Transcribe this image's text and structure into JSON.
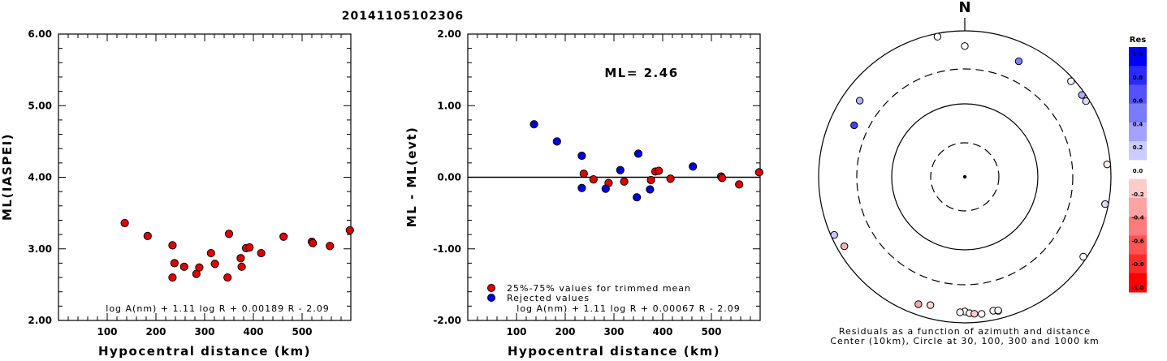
{
  "title": "20141105102306",
  "chart_data": [
    {
      "type": "scatter",
      "xlabel": "Hypocentral distance (km)",
      "ylabel": "ML(IASPEI)",
      "xlim": [
        0,
        600
      ],
      "ylim": [
        2.0,
        6.0
      ],
      "xticks": [
        "100",
        "200",
        "300",
        "400",
        "500"
      ],
      "yticks": [
        "2.00",
        "3.00",
        "4.00",
        "5.00",
        "6.00"
      ],
      "formula": "log A(nm) + 1.11 log R + 0.00189 R - 2.09",
      "points": [
        {
          "x": 136,
          "y": 3.36
        },
        {
          "x": 183,
          "y": 3.18
        },
        {
          "x": 234,
          "y": 3.05
        },
        {
          "x": 234,
          "y": 2.6
        },
        {
          "x": 238,
          "y": 2.8
        },
        {
          "x": 258,
          "y": 2.75
        },
        {
          "x": 283,
          "y": 2.65
        },
        {
          "x": 289,
          "y": 2.74
        },
        {
          "x": 313,
          "y": 2.94
        },
        {
          "x": 321,
          "y": 2.79
        },
        {
          "x": 347,
          "y": 2.6
        },
        {
          "x": 350,
          "y": 3.21
        },
        {
          "x": 374,
          "y": 2.87
        },
        {
          "x": 376,
          "y": 2.75
        },
        {
          "x": 385,
          "y": 3.01
        },
        {
          "x": 392,
          "y": 3.02
        },
        {
          "x": 416,
          "y": 2.94
        },
        {
          "x": 462,
          "y": 3.17
        },
        {
          "x": 520,
          "y": 3.1
        },
        {
          "x": 522,
          "y": 3.08
        },
        {
          "x": 557,
          "y": 3.04
        },
        {
          "x": 598,
          "y": 3.26
        }
      ],
      "marker_color": "#e00000"
    },
    {
      "type": "scatter",
      "xlabel": "Hypocentral distance (km)",
      "ylabel": "ML - ML(evt)",
      "xlim": [
        0,
        600
      ],
      "ylim": [
        -2.0,
        2.0
      ],
      "xticks": [
        "100",
        "200",
        "300",
        "400",
        "500"
      ],
      "yticks": [
        "-2.00",
        "-1.00",
        "0.00",
        "1.00",
        "2.00"
      ],
      "annotation": "ML= 2.46",
      "formula": "log A(nm) + 1.11 log R + 0.00067 R - 2.09",
      "legend": [
        {
          "label": "25%-75% values for trimmed mean",
          "color": "#e00000"
        },
        {
          "label": "Rejected values",
          "color": "#0000e0"
        }
      ],
      "series": [
        {
          "name": "25%-75% values for trimmed mean",
          "color": "#e00000",
          "points": [
            {
              "x": 238,
              "y": 0.05
            },
            {
              "x": 258,
              "y": -0.03
            },
            {
              "x": 289,
              "y": -0.08
            },
            {
              "x": 321,
              "y": -0.06
            },
            {
              "x": 376,
              "y": -0.04
            },
            {
              "x": 385,
              "y": 0.08
            },
            {
              "x": 392,
              "y": 0.09
            },
            {
              "x": 416,
              "y": -0.02
            },
            {
              "x": 520,
              "y": 0.01
            },
            {
              "x": 522,
              "y": -0.01
            },
            {
              "x": 557,
              "y": -0.1
            },
            {
              "x": 598,
              "y": 0.07
            }
          ]
        },
        {
          "name": "Rejected values",
          "color": "#0000e0",
          "points": [
            {
              "x": 136,
              "y": 0.74
            },
            {
              "x": 183,
              "y": 0.5
            },
            {
              "x": 234,
              "y": 0.3
            },
            {
              "x": 234,
              "y": -0.15
            },
            {
              "x": 283,
              "y": -0.16
            },
            {
              "x": 313,
              "y": 0.1
            },
            {
              "x": 347,
              "y": -0.28
            },
            {
              "x": 350,
              "y": 0.33
            },
            {
              "x": 374,
              "y": -0.17
            },
            {
              "x": 462,
              "y": 0.15
            }
          ]
        }
      ]
    },
    {
      "type": "polar-scatter",
      "north_label": "N",
      "caption_line1": "Residuals as a function of azimuth and distance",
      "caption_line2": "Center (10km), Circle at 30, 100, 300 and 1000 km",
      "rings_km": [
        30,
        100,
        300,
        1000
      ],
      "colorbar_title": "Res",
      "colorbar_ticks": [
        "1.0",
        "0.8",
        "0.6",
        "0.4",
        "0.2",
        "0.0",
        "-0.2",
        "-0.4",
        "-0.6",
        "-0.8",
        "-1.0"
      ],
      "colorbar_colors": [
        "#0000ff",
        "#2a2aff",
        "#5252ff",
        "#7a7aff",
        "#a3a3ff",
        "#ccccff",
        "#ffffff",
        "#ffcccc",
        "#ffa3a3",
        "#ff7a7a",
        "#ff5252",
        "#ff2a2a",
        "#ff0000"
      ],
      "stations": [
        {
          "azimuth": 349,
          "distance_km": 1000,
          "residual": 0.0
        },
        {
          "azimuth": 0,
          "distance_km": 620,
          "residual": 0.0
        },
        {
          "azimuth": 306,
          "distance_km": 600,
          "residual": 0.3
        },
        {
          "azimuth": 25,
          "distance_km": 560,
          "residual": 0.5
        },
        {
          "azimuth": 295,
          "distance_km": 470,
          "residual": 0.74
        },
        {
          "azimuth": 48,
          "distance_km": 1000,
          "residual": 0.05
        },
        {
          "azimuth": 55,
          "distance_km": 1000,
          "residual": 0.33
        },
        {
          "azimuth": 58,
          "distance_km": 1000,
          "residual": 0.15
        },
        {
          "azimuth": 85,
          "distance_km": 1200,
          "residual": -0.08
        },
        {
          "azimuth": 101,
          "distance_km": 1000,
          "residual": 0.15
        },
        {
          "azimuth": 124,
          "distance_km": 1000,
          "residual": 0.0
        },
        {
          "azimuth": 246,
          "distance_km": 1000,
          "residual": 0.2
        },
        {
          "azimuth": 240,
          "distance_km": 800,
          "residual": -0.3
        },
        {
          "azimuth": 195,
          "distance_km": 660,
          "residual": -0.15
        },
        {
          "azimuth": 200,
          "distance_km": 720,
          "residual": -0.35
        },
        {
          "azimuth": 180,
          "distance_km": 700,
          "residual": 0.0
        },
        {
          "azimuth": 182,
          "distance_km": 720,
          "residual": 0.05
        },
        {
          "azimuth": 178,
          "distance_km": 740,
          "residual": -0.05
        },
        {
          "azimuth": 176,
          "distance_km": 760,
          "residual": -0.2
        },
        {
          "azimuth": 173,
          "distance_km": 780,
          "residual": 0.0
        },
        {
          "azimuth": 168,
          "distance_km": 750,
          "residual": 0.0
        },
        {
          "azimuth": 166,
          "distance_km": 780,
          "residual": -0.05
        },
        {
          "azimuth": 166,
          "distance_km": 770,
          "residual": 0.0
        }
      ]
    }
  ]
}
